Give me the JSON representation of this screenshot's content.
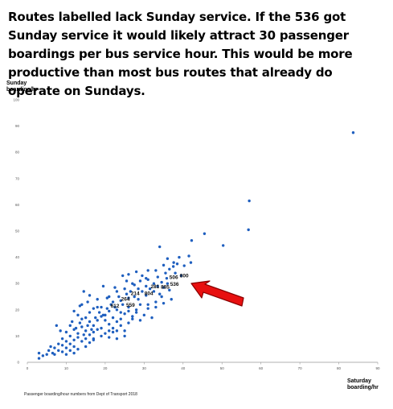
{
  "headline": "Routes labelled lack Sunday service. If the 536 got Sunday service it would likely attract 30 passenger boardings per bus service hour. This would be more productive than most bus routes that already do operate on Sundays.",
  "source_note": "Passenger boarding/hour numbers from Dept of Transport 2018",
  "colors": {
    "points": "#1f5fbf",
    "arrow_fill": "#e81010",
    "arrow_stroke": "#8a0000",
    "axis": "#999999",
    "grid": "#dddddd"
  },
  "chart_data": {
    "type": "scatter",
    "ylabel_lines": [
      "Sunday",
      "boarding/hr"
    ],
    "xlabel_lines": [
      "Saturday",
      "boarding/hr"
    ],
    "xlim": [
      0,
      90
    ],
    "ylim": [
      0,
      100
    ],
    "xticks": [
      0,
      10,
      20,
      30,
      40,
      50,
      60,
      70,
      80,
      90
    ],
    "yticks": [
      0,
      10,
      20,
      30,
      40,
      50,
      60,
      70,
      80,
      90,
      100
    ],
    "grid": false,
    "points": [
      [
        83.7,
        87.5
      ],
      [
        57,
        61.5
      ],
      [
        56.8,
        50.5
      ],
      [
        45.5,
        49
      ],
      [
        50.3,
        44.5
      ],
      [
        42.2,
        46.4
      ],
      [
        34,
        44
      ],
      [
        41.5,
        40.5
      ],
      [
        39,
        40
      ],
      [
        36,
        39.5
      ],
      [
        37.6,
        38
      ],
      [
        40.3,
        36.8
      ],
      [
        42,
        38
      ],
      [
        35,
        37
      ],
      [
        33,
        35
      ],
      [
        31,
        35
      ],
      [
        28,
        34.5
      ],
      [
        26,
        33.5
      ],
      [
        29.5,
        33
      ],
      [
        24.5,
        33
      ],
      [
        33.5,
        32.5
      ],
      [
        30.5,
        32
      ],
      [
        38,
        34
      ],
      [
        22.5,
        28.5
      ],
      [
        19.5,
        29
      ],
      [
        27.5,
        29.5
      ],
      [
        31,
        31.5
      ],
      [
        35.8,
        32
      ],
      [
        25.5,
        31
      ],
      [
        36.5,
        27.5
      ],
      [
        34.5,
        25
      ],
      [
        32.5,
        27
      ],
      [
        30.5,
        25.5
      ],
      [
        28.5,
        24
      ],
      [
        26,
        24.5
      ],
      [
        24,
        23.5
      ],
      [
        22,
        23
      ],
      [
        20.5,
        24.5
      ],
      [
        18,
        24
      ],
      [
        16,
        25.5
      ],
      [
        14.5,
        27
      ],
      [
        15.5,
        23
      ],
      [
        13.5,
        21.5
      ],
      [
        17,
        20.5
      ],
      [
        19,
        21
      ],
      [
        21,
        19.5
      ],
      [
        23,
        20
      ],
      [
        25,
        18.5
      ],
      [
        27,
        17.5
      ],
      [
        29,
        22
      ],
      [
        31,
        20.5
      ],
      [
        33,
        23
      ],
      [
        35,
        22.5
      ],
      [
        37,
        24
      ],
      [
        12,
        19.5
      ],
      [
        13,
        18
      ],
      [
        14,
        16.5
      ],
      [
        15,
        17
      ],
      [
        16,
        15.5
      ],
      [
        17,
        14
      ],
      [
        18,
        16
      ],
      [
        19,
        17.5
      ],
      [
        20,
        16
      ],
      [
        21,
        14.5
      ],
      [
        22,
        13
      ],
      [
        23,
        15.5
      ],
      [
        24,
        14
      ],
      [
        25,
        12
      ],
      [
        26,
        15
      ],
      [
        27,
        16.5
      ],
      [
        28,
        19
      ],
      [
        30,
        18
      ],
      [
        32,
        17
      ],
      [
        11,
        14
      ],
      [
        12,
        12.5
      ],
      [
        13,
        11
      ],
      [
        14,
        13.5
      ],
      [
        15,
        12
      ],
      [
        16,
        10.5
      ],
      [
        17,
        11.5
      ],
      [
        18,
        12.5
      ],
      [
        19,
        10
      ],
      [
        20,
        11
      ],
      [
        21,
        9.5
      ],
      [
        22,
        11.5
      ],
      [
        23,
        12
      ],
      [
        10,
        11.5
      ],
      [
        11,
        10
      ],
      [
        12,
        8.5
      ],
      [
        13,
        9.5
      ],
      [
        14,
        8
      ],
      [
        15,
        9
      ],
      [
        16,
        7.5
      ],
      [
        17,
        8.5
      ],
      [
        9,
        9
      ],
      [
        10,
        8
      ],
      [
        11,
        7
      ],
      [
        12,
        6
      ],
      [
        8,
        7
      ],
      [
        9,
        6.5
      ],
      [
        10,
        5.5
      ],
      [
        7,
        5.5
      ],
      [
        8,
        4.5
      ],
      [
        6.5,
        3.5
      ],
      [
        5.5,
        4.5
      ],
      [
        5,
        3
      ],
      [
        4,
        2.5
      ],
      [
        3,
        3.5
      ],
      [
        3,
        1.5
      ],
      [
        6,
        6
      ],
      [
        7,
        3
      ],
      [
        7.5,
        14
      ],
      [
        8.5,
        12
      ],
      [
        11.5,
        15.5
      ],
      [
        12.5,
        13
      ],
      [
        13.5,
        15
      ],
      [
        14.5,
        10.5
      ],
      [
        15.5,
        14
      ],
      [
        16.5,
        12.5
      ],
      [
        17.5,
        17
      ],
      [
        18.5,
        19
      ],
      [
        19.5,
        18
      ],
      [
        20.5,
        20.5
      ],
      [
        21.5,
        22
      ],
      [
        22.5,
        21
      ],
      [
        23.5,
        25
      ],
      [
        24.5,
        22
      ],
      [
        25.5,
        26
      ],
      [
        26.5,
        27
      ],
      [
        27.5,
        25
      ],
      [
        28.5,
        28
      ],
      [
        29.5,
        27
      ],
      [
        30.5,
        29
      ],
      [
        31.5,
        28
      ],
      [
        32.5,
        30
      ],
      [
        33.5,
        29
      ],
      [
        34.5,
        30.5
      ],
      [
        35.5,
        34
      ],
      [
        36.5,
        35.5
      ],
      [
        37.5,
        36.5
      ],
      [
        38.5,
        37.5
      ],
      [
        39.5,
        33
      ],
      [
        20,
        18
      ],
      [
        22,
        17
      ],
      [
        24,
        19
      ],
      [
        26,
        21
      ],
      [
        28,
        20
      ],
      [
        18,
        21
      ],
      [
        16,
        19
      ],
      [
        14,
        22
      ],
      [
        21,
        25
      ],
      [
        23,
        27
      ],
      [
        25,
        28
      ],
      [
        27,
        30
      ],
      [
        29,
        31
      ],
      [
        19,
        13
      ],
      [
        21,
        12
      ],
      [
        23,
        9
      ],
      [
        25,
        10
      ],
      [
        17,
        9
      ],
      [
        15,
        6
      ],
      [
        13,
        5
      ],
      [
        11,
        4.5
      ],
      [
        9,
        4
      ],
      [
        10,
        3
      ],
      [
        12,
        3.5
      ],
      [
        24,
        16.5
      ],
      [
        26,
        19.5
      ],
      [
        29,
        16
      ],
      [
        31,
        22
      ],
      [
        33,
        21
      ],
      [
        34,
        26
      ],
      [
        35,
        28.5
      ],
      [
        36,
        30
      ]
    ],
    "annotations": [
      {
        "label": "506",
        "x": 37.6,
        "y": 31.8
      },
      {
        "label": "800",
        "x": 40.3,
        "y": 32.3
      },
      {
        "label": "536",
        "x": 37.8,
        "y": 29.2
      },
      {
        "label": "281",
        "x": 32.8,
        "y": 28.2
      },
      {
        "label": "885",
        "x": 35.4,
        "y": 28.1
      },
      {
        "label": "214",
        "x": 27.7,
        "y": 25.6
      },
      {
        "label": "804",
        "x": 31.2,
        "y": 25.6
      },
      {
        "label": "264",
        "x": 25.2,
        "y": 23.4
      },
      {
        "label": "612",
        "x": 22.5,
        "y": 20.8
      },
      {
        "label": "559",
        "x": 26.5,
        "y": 21.2
      }
    ]
  }
}
